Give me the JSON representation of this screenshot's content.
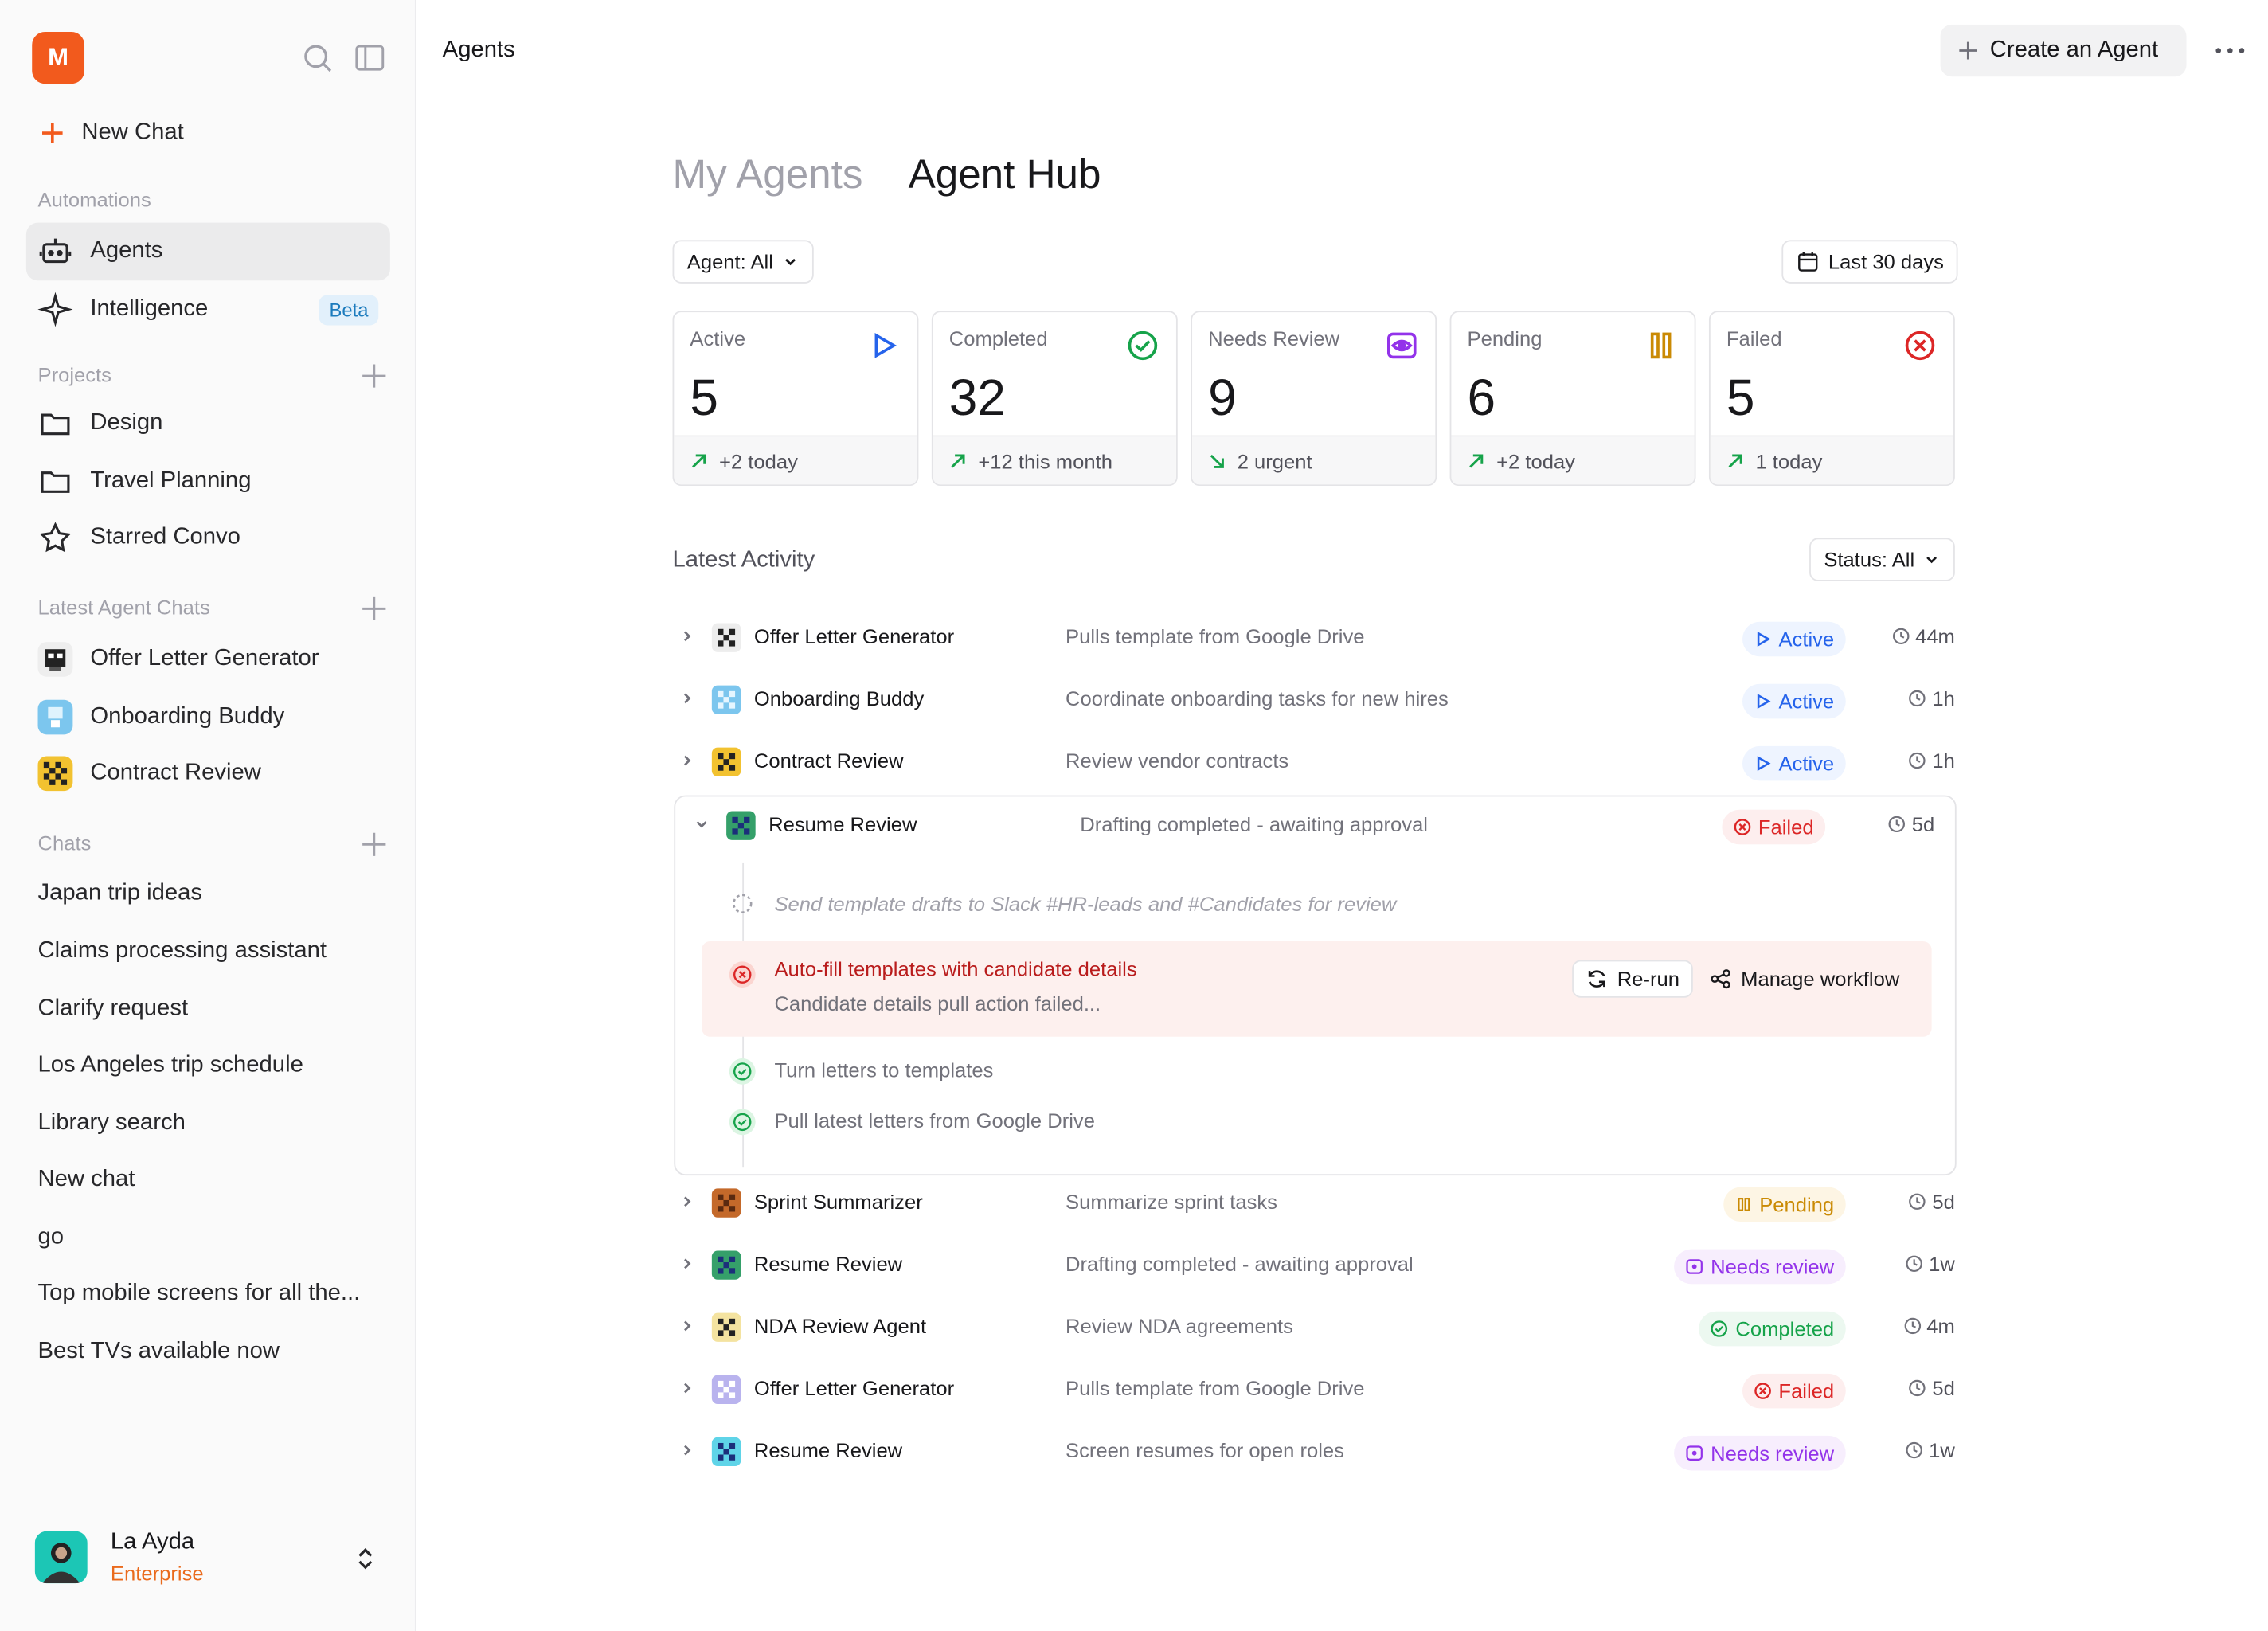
{
  "sidebar": {
    "logo": "M",
    "new_chat": "New Chat",
    "automations_label": "Automations",
    "agents": "Agents",
    "intelligence": "Intelligence",
    "beta": "Beta",
    "projects_label": "Projects",
    "projects": [
      "Design",
      "Travel Planning",
      "Starred Convo"
    ],
    "latest_agent_chats_label": "Latest Agent Chats",
    "agent_chats": [
      "Offer Letter Generator",
      "Onboarding Buddy",
      "Contract Review"
    ],
    "chats_label": "Chats",
    "chats": [
      "Japan trip ideas",
      "Claims processing assistant",
      "Clarify request",
      "Los Angeles trip schedule",
      "Library search",
      "New chat",
      "go",
      "Top mobile screens for all the...",
      "Best TVs available now"
    ],
    "user": {
      "name": "La Ayda",
      "plan": "Enterprise"
    }
  },
  "header": {
    "breadcrumb": "Agents",
    "create_button": "Create an Agent"
  },
  "tabs": {
    "my_agents": "My Agents",
    "agent_hub": "Agent Hub"
  },
  "filters": {
    "agent": "Agent: All",
    "range": "Last 30 days",
    "status": "Status: All"
  },
  "stats": [
    {
      "label": "Active",
      "value": "5",
      "foot": "+2 today",
      "icon": "play-icon",
      "color": "#2563eb"
    },
    {
      "label": "Completed",
      "value": "32",
      "foot": "+12 this month",
      "icon": "check-circle-icon",
      "color": "#16a34a"
    },
    {
      "label": "Needs Review",
      "value": "9",
      "foot": "2 urgent",
      "icon": "eye-icon",
      "color": "#9333ea"
    },
    {
      "label": "Pending",
      "value": "6",
      "foot": "+2 today",
      "icon": "pause-icon",
      "color": "#ca8a04"
    },
    {
      "label": "Failed",
      "value": "5",
      "foot": "1 today",
      "icon": "x-circle-icon",
      "color": "#dc2626"
    }
  ],
  "activity": {
    "title": "Latest Activity",
    "rows": [
      {
        "name": "Offer Letter Generator",
        "desc": "Pulls template from Google Drive",
        "status": "Active",
        "time": "44m"
      },
      {
        "name": "Onboarding Buddy",
        "desc": "Coordinate onboarding tasks for new hires",
        "status": "Active",
        "time": "1h"
      },
      {
        "name": "Contract Review",
        "desc": "Review vendor contracts",
        "status": "Active",
        "time": "1h"
      },
      {
        "name": "Resume Review",
        "desc": "Drafting completed - awaiting approval",
        "status": "Failed",
        "time": "5d"
      },
      {
        "name": "Sprint Summarizer",
        "desc": "Summarize sprint tasks",
        "status": "Pending",
        "time": "5d"
      },
      {
        "name": "Resume Review",
        "desc": "Drafting completed - awaiting approval",
        "status": "Needs review",
        "time": "1w"
      },
      {
        "name": "NDA Review Agent",
        "desc": "Review NDA agreements",
        "status": "Completed",
        "time": "4m"
      },
      {
        "name": "Offer Letter Generator",
        "desc": "Pulls template from Google Drive",
        "status": "Failed",
        "time": "5d"
      },
      {
        "name": "Resume Review",
        "desc": "Screen resumes for open roles",
        "status": "Needs review",
        "time": "1w"
      }
    ],
    "expanded_steps": {
      "pending_step": "Send template drafts to Slack #HR-leads and #Candidates for review",
      "failed_title": "Auto-fill templates with candidate details",
      "failed_detail": "Candidate details pull action failed...",
      "rerun": "Re-run",
      "manage": "Manage workflow",
      "done_1": "Turn letters to templates",
      "done_2": "Pull latest letters from Google Drive"
    }
  }
}
